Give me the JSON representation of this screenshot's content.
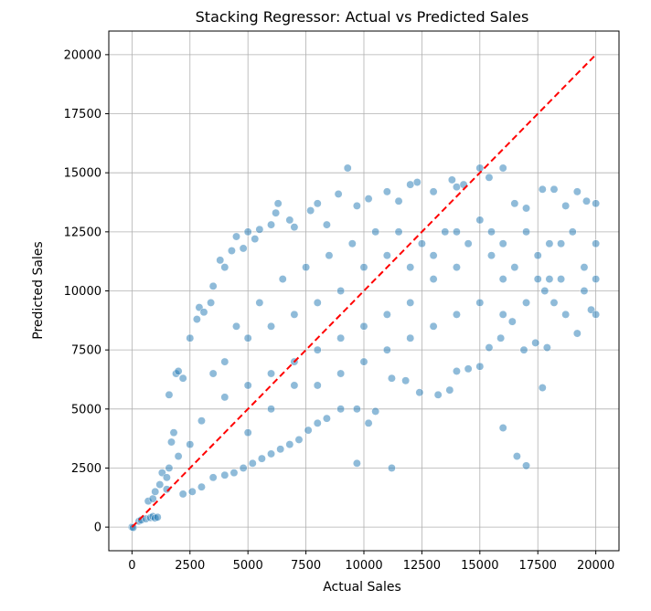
{
  "chart_data": {
    "type": "scatter",
    "title": "Stacking Regressor: Actual vs Predicted Sales",
    "xlabel": "Actual Sales",
    "ylabel": "Predicted Sales",
    "xlim": [
      -1000,
      21000
    ],
    "ylim": [
      -1000,
      21000
    ],
    "xticks": [
      0,
      2500,
      5000,
      7500,
      10000,
      12500,
      15000,
      17500,
      20000
    ],
    "yticks": [
      0,
      2500,
      5000,
      7500,
      10000,
      12500,
      15000,
      17500,
      20000
    ],
    "grid": true,
    "point_color": "#1f77b4",
    "point_alpha": 0.5,
    "reference_line": {
      "x": [
        0,
        20000
      ],
      "y": [
        0,
        20000
      ],
      "color": "#ff0000",
      "style": "dashed"
    },
    "series": [
      {
        "values_note": "",
        "points": [
          [
            0,
            0
          ],
          [
            50,
            -20
          ],
          [
            300,
            250
          ],
          [
            400,
            300
          ],
          [
            600,
            350
          ],
          [
            800,
            400
          ],
          [
            900,
            450
          ],
          [
            1000,
            380
          ],
          [
            1100,
            420
          ],
          [
            700,
            1100
          ],
          [
            900,
            1200
          ],
          [
            1000,
            1500
          ],
          [
            1200,
            1800
          ],
          [
            1300,
            2300
          ],
          [
            1500,
            1600
          ],
          [
            1600,
            2500
          ],
          [
            1500,
            2100
          ],
          [
            1600,
            5600
          ],
          [
            1900,
            6500
          ],
          [
            2000,
            6600
          ],
          [
            2200,
            6300
          ],
          [
            1700,
            3600
          ],
          [
            1800,
            4000
          ],
          [
            2000,
            3000
          ],
          [
            2500,
            8000
          ],
          [
            2800,
            8800
          ],
          [
            2900,
            9300
          ],
          [
            3100,
            9100
          ],
          [
            3400,
            9500
          ],
          [
            3500,
            10200
          ],
          [
            3800,
            11300
          ],
          [
            4000,
            11000
          ],
          [
            4300,
            11700
          ],
          [
            4500,
            12300
          ],
          [
            4800,
            11800
          ],
          [
            5000,
            12500
          ],
          [
            5300,
            12200
          ],
          [
            5500,
            12600
          ],
          [
            6000,
            12800
          ],
          [
            6200,
            13300
          ],
          [
            6300,
            13700
          ],
          [
            6800,
            13000
          ],
          [
            7000,
            12700
          ],
          [
            7700,
            13400
          ],
          [
            8000,
            13700
          ],
          [
            8400,
            12800
          ],
          [
            8900,
            14100
          ],
          [
            9300,
            15200
          ],
          [
            9700,
            13600
          ],
          [
            10200,
            13900
          ],
          [
            11000,
            14200
          ],
          [
            11500,
            13800
          ],
          [
            12000,
            14500
          ],
          [
            12300,
            14600
          ],
          [
            13000,
            14200
          ],
          [
            13800,
            14700
          ],
          [
            14000,
            14400
          ],
          [
            14300,
            14500
          ],
          [
            15000,
            15200
          ],
          [
            15400,
            14800
          ],
          [
            16000,
            15200
          ],
          [
            16500,
            13700
          ],
          [
            17000,
            13500
          ],
          [
            17700,
            14300
          ],
          [
            18200,
            14300
          ],
          [
            18700,
            13600
          ],
          [
            19200,
            14200
          ],
          [
            19600,
            13800
          ],
          [
            20000,
            13700
          ],
          [
            19800,
            9200
          ],
          [
            19200,
            8200
          ],
          [
            18700,
            9000
          ],
          [
            18200,
            9500
          ],
          [
            17800,
            10000
          ],
          [
            17400,
            7800
          ],
          [
            16900,
            7500
          ],
          [
            16400,
            8700
          ],
          [
            15900,
            8000
          ],
          [
            15400,
            7600
          ],
          [
            15000,
            6800
          ],
          [
            14500,
            6700
          ],
          [
            14000,
            6600
          ],
          [
            13700,
            5800
          ],
          [
            13200,
            5600
          ],
          [
            12400,
            5700
          ],
          [
            11800,
            6200
          ],
          [
            11200,
            6300
          ],
          [
            10500,
            4900
          ],
          [
            10200,
            4400
          ],
          [
            9700,
            5000
          ],
          [
            9000,
            5000
          ],
          [
            8400,
            4600
          ],
          [
            8000,
            4400
          ],
          [
            7600,
            4100
          ],
          [
            7200,
            3700
          ],
          [
            6800,
            3500
          ],
          [
            6400,
            3300
          ],
          [
            6000,
            3100
          ],
          [
            5600,
            2900
          ],
          [
            5200,
            2700
          ],
          [
            4800,
            2500
          ],
          [
            4400,
            2300
          ],
          [
            4000,
            2200
          ],
          [
            3500,
            2100
          ],
          [
            3000,
            1700
          ],
          [
            2600,
            1500
          ],
          [
            2200,
            1400
          ],
          [
            9700,
            2700
          ],
          [
            11200,
            2500
          ],
          [
            16000,
            4200
          ],
          [
            16600,
            3000
          ],
          [
            17000,
            2600
          ],
          [
            17700,
            5900
          ],
          [
            17900,
            7600
          ],
          [
            16000,
            10500
          ],
          [
            17500,
            11500
          ],
          [
            15500,
            12500
          ],
          [
            18500,
            12000
          ],
          [
            19500,
            11000
          ],
          [
            14000,
            11000
          ],
          [
            13000,
            10500
          ],
          [
            12000,
            9500
          ],
          [
            11000,
            9000
          ],
          [
            10000,
            8500
          ],
          [
            9000,
            8000
          ],
          [
            8000,
            7500
          ],
          [
            7000,
            7000
          ],
          [
            6000,
            6500
          ],
          [
            5000,
            6000
          ],
          [
            4000,
            5500
          ],
          [
            3000,
            4500
          ],
          [
            2500,
            3500
          ],
          [
            3500,
            6500
          ],
          [
            4500,
            8500
          ],
          [
            5500,
            9500
          ],
          [
            6500,
            10500
          ],
          [
            7500,
            11000
          ],
          [
            8500,
            11500
          ],
          [
            9500,
            12000
          ],
          [
            10500,
            12500
          ],
          [
            11500,
            12500
          ],
          [
            12500,
            12000
          ],
          [
            13500,
            12500
          ],
          [
            14500,
            12000
          ],
          [
            15500,
            11500
          ],
          [
            16500,
            11000
          ],
          [
            17500,
            10500
          ],
          [
            18500,
            10500
          ],
          [
            19500,
            10000
          ],
          [
            5000,
            4000
          ],
          [
            6000,
            5000
          ],
          [
            7000,
            6000
          ],
          [
            8000,
            6000
          ],
          [
            9000,
            6500
          ],
          [
            10000,
            7000
          ],
          [
            11000,
            7500
          ],
          [
            12000,
            8000
          ],
          [
            13000,
            8500
          ],
          [
            14000,
            9000
          ],
          [
            15000,
            9500
          ],
          [
            16000,
            9000
          ],
          [
            17000,
            9500
          ],
          [
            18000,
            10500
          ],
          [
            4000,
            7000
          ],
          [
            5000,
            8000
          ],
          [
            6000,
            8500
          ],
          [
            7000,
            9000
          ],
          [
            8000,
            9500
          ],
          [
            9000,
            10000
          ],
          [
            10000,
            11000
          ],
          [
            11000,
            11500
          ],
          [
            12000,
            11000
          ],
          [
            13000,
            11500
          ],
          [
            14000,
            12500
          ],
          [
            15000,
            13000
          ],
          [
            16000,
            12000
          ],
          [
            17000,
            12500
          ],
          [
            18000,
            12000
          ],
          [
            19000,
            12500
          ],
          [
            20000,
            12000
          ],
          [
            20000,
            10500
          ],
          [
            20000,
            9000
          ]
        ]
      }
    ]
  }
}
